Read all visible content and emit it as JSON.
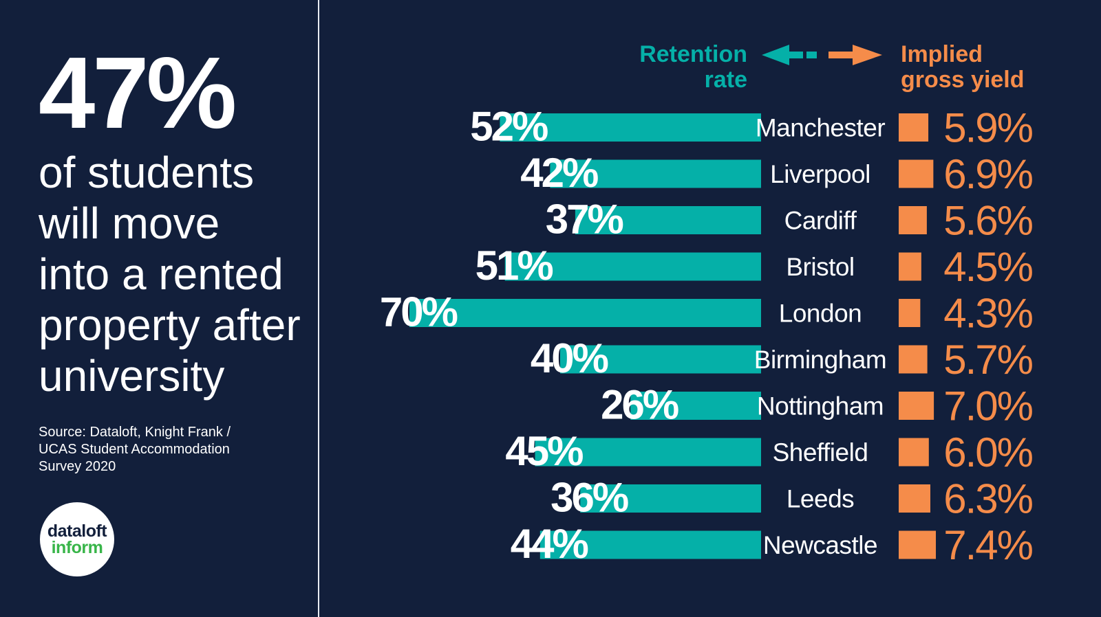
{
  "headline": {
    "stat": "47%",
    "lines": [
      "of students",
      "will move",
      "into a rented",
      "property after",
      "university"
    ]
  },
  "source": {
    "lines": [
      "Source: Dataloft, Knight Frank /",
      "UCAS Student Accommodation",
      "Survey 2020"
    ]
  },
  "logo": {
    "top": "dataloft",
    "bottom": "inform"
  },
  "colors": {
    "background": "#121f3b",
    "retention": "#05b0a8",
    "yield": "#f58c4a",
    "logo_green": "#38b549"
  },
  "chart_data": {
    "type": "bar",
    "left_header": [
      "Retention",
      "rate"
    ],
    "right_header": [
      "Implied",
      "gross yield"
    ],
    "categories": [
      "Manchester",
      "Liverpool",
      "Cardiff",
      "Bristol",
      "London",
      "Birmingham",
      "Nottingham",
      "Sheffield",
      "Leeds",
      "Newcastle"
    ],
    "series": [
      {
        "name": "Retention rate",
        "values": [
          52,
          42,
          37,
          51,
          70,
          40,
          26,
          45,
          36,
          44
        ],
        "labels": [
          "52%",
          "42%",
          "37%",
          "51%",
          "70%",
          "40%",
          "26%",
          "45%",
          "36%",
          "44%"
        ]
      },
      {
        "name": "Implied gross yield",
        "values": [
          5.9,
          6.9,
          5.6,
          4.5,
          4.3,
          5.7,
          7.0,
          6.0,
          6.3,
          7.4
        ],
        "labels": [
          "5.9%",
          "6.9%",
          "5.6%",
          "4.5%",
          "4.3%",
          "5.7%",
          "7.0%",
          "6.0%",
          "6.3%",
          "7.4%"
        ]
      }
    ]
  }
}
